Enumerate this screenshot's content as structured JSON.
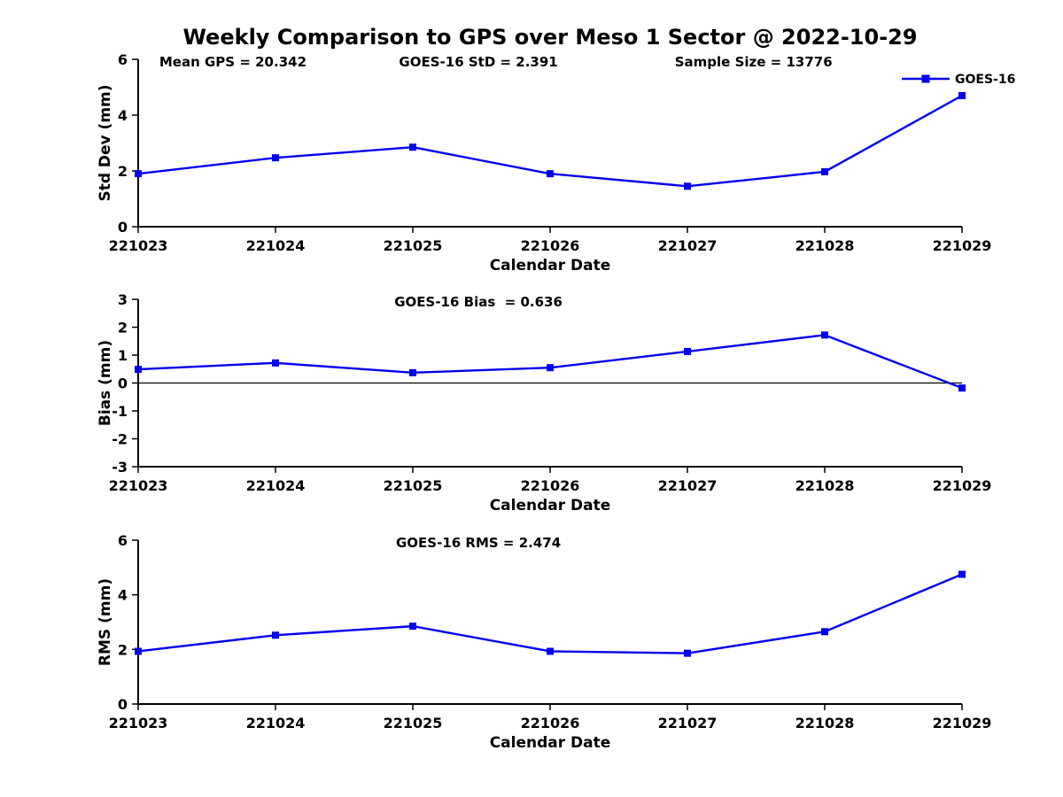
{
  "title": "Weekly Comparison to GPS over Meso 1 Sector @ 2022-10-29",
  "legend": {
    "label": "GOES-16"
  },
  "chart_data": {
    "type": "line",
    "x_label": "Calendar Date",
    "categories": [
      "221023",
      "221024",
      "221025",
      "221026",
      "221027",
      "221028",
      "221029"
    ],
    "series_name": "GOES-16",
    "line_color": "#0000EE",
    "marker": "square",
    "subplots": [
      {
        "id": "std-dev",
        "ylabel": "Std Dev (mm)",
        "ylim": [
          0,
          6
        ],
        "yticks": [
          0,
          2,
          4,
          6
        ],
        "values": [
          1.9,
          2.47,
          2.85,
          1.9,
          1.45,
          1.97,
          4.7
        ],
        "annotations": [
          "Mean GPS = 20.342",
          "GOES-16 StD = 2.391",
          "Sample Size = 13776"
        ],
        "zero_line": false,
        "legend_visible": true
      },
      {
        "id": "bias",
        "ylabel": "Bias (mm)",
        "ylim": [
          -3,
          3
        ],
        "yticks": [
          -3,
          -2,
          -1,
          0,
          1,
          2,
          3
        ],
        "values": [
          0.49,
          0.72,
          0.37,
          0.55,
          1.13,
          1.72,
          -0.18
        ],
        "annotations": [
          "GOES-16 Bias  = 0.636"
        ],
        "zero_line": true,
        "legend_visible": false
      },
      {
        "id": "rms",
        "ylabel": "RMS (mm)",
        "ylim": [
          0,
          6
        ],
        "yticks": [
          0,
          2,
          4,
          6
        ],
        "values": [
          1.93,
          2.52,
          2.85,
          1.93,
          1.86,
          2.65,
          4.75
        ],
        "annotations": [
          "GOES-16 RMS = 2.474"
        ],
        "zero_line": false,
        "legend_visible": false
      }
    ]
  }
}
